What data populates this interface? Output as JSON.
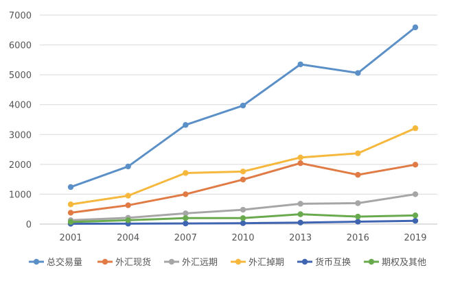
{
  "chart_data": {
    "type": "line",
    "title": "",
    "xlabel": "",
    "ylabel": "",
    "categories": [
      "2001",
      "2004",
      "2007",
      "2010",
      "2013",
      "2016",
      "2019"
    ],
    "ylim": [
      0,
      7000
    ],
    "yticks": [
      0,
      1000,
      2000,
      3000,
      4000,
      5000,
      6000,
      7000
    ],
    "grid": true,
    "legend_position": "bottom",
    "series": [
      {
        "name": "总交易量",
        "color": "#5b8fc7",
        "values": [
          1240,
          1930,
          3320,
          3970,
          5350,
          5060,
          6590
        ]
      },
      {
        "name": "外汇现货",
        "color": "#e07b45",
        "values": [
          380,
          630,
          1000,
          1490,
          2040,
          1650,
          1990
        ]
      },
      {
        "name": "外汇远期",
        "color": "#a6a6a6",
        "values": [
          130,
          210,
          360,
          480,
          680,
          700,
          1000
        ]
      },
      {
        "name": "外汇掉期",
        "color": "#f5b83d",
        "values": [
          660,
          950,
          1710,
          1760,
          2230,
          2370,
          3210
        ]
      },
      {
        "name": "货币互换",
        "color": "#3f64b0",
        "values": [
          10,
          15,
          20,
          30,
          50,
          80,
          110
        ]
      },
      {
        "name": "期权及其他",
        "color": "#6aaa4f",
        "values": [
          70,
          130,
          200,
          200,
          330,
          250,
          290
        ]
      }
    ]
  }
}
